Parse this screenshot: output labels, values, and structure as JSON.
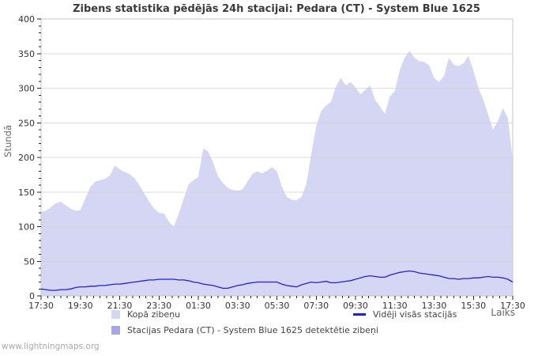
{
  "page": {
    "watermark": "www.lightningmaps.org"
  },
  "chart_data": {
    "type": "area",
    "title": "Zibens statistika pēdējās 24h stacijai: Pedara (CT) - System Blue 1625",
    "ylabel": "Stundā",
    "xlabel": "Laiks",
    "ylim": [
      0,
      400
    ],
    "y_major_step": 50,
    "y_minor_step": 10,
    "x_range_hours": 24,
    "x_tick_labels": [
      "17:30",
      "19:30",
      "21:30",
      "23:30",
      "01:30",
      "03:30",
      "05:30",
      "07:30",
      "09:30",
      "11:30",
      "13:30",
      "15:30",
      "17:30"
    ],
    "x_minor_ticks_per_major": 6,
    "sample_interval_minutes": 15,
    "grid": "horizontal",
    "legend_position": "bottom",
    "colors": {
      "total_area": "#d5d5f4",
      "station_area": "#a7a7e8",
      "average_line": "#2222cc",
      "grid": "#d0d0d0",
      "frame": "#c6c6c6",
      "tick": "#222222"
    },
    "series": [
      {
        "name": "Kopā zibeņu",
        "type": "area",
        "color": "#d5d5f4",
        "values": [
          121,
          123,
          128,
          134,
          136,
          131,
          126,
          123,
          124,
          141,
          157,
          165,
          167,
          169,
          174,
          188,
          183,
          179,
          176,
          170,
          160,
          148,
          136,
          126,
          120,
          119,
          107,
          100,
          118,
          140,
          161,
          167,
          172,
          213,
          209,
          193,
          173,
          163,
          156,
          153,
          152,
          154,
          165,
          176,
          180,
          177,
          181,
          186,
          180,
          158,
          143,
          139,
          138,
          143,
          162,
          205,
          245,
          267,
          275,
          280,
          302,
          315,
          304,
          309,
          301,
          291,
          298,
          304,
          283,
          273,
          263,
          288,
          296,
          326,
          344,
          354,
          344,
          339,
          338,
          333,
          315,
          309,
          317,
          344,
          334,
          332,
          336,
          347,
          325,
          301,
          283,
          262,
          240,
          253,
          271,
          257,
          196
        ]
      },
      {
        "name": "Stacijas Pedara (CT) - System Blue 1625 detektētie zibeņi",
        "type": "area",
        "color": "#a7a7e8",
        "visible_in_plot": false,
        "values": []
      },
      {
        "name": "Vidēji visās stacijās",
        "type": "line",
        "color": "#2222cc",
        "values": [
          10,
          9,
          8,
          8,
          9,
          9,
          10,
          12,
          13,
          13,
          14,
          14,
          15,
          15,
          16,
          17,
          17,
          18,
          19,
          20,
          21,
          22,
          23,
          23,
          24,
          24,
          24,
          24,
          23,
          23,
          22,
          20,
          19,
          17,
          16,
          15,
          13,
          11,
          11,
          13,
          15,
          16,
          18,
          19,
          20,
          20,
          20,
          20,
          20,
          17,
          15,
          14,
          13,
          16,
          18,
          20,
          19,
          20,
          21,
          19,
          19,
          20,
          21,
          22,
          24,
          26,
          28,
          29,
          28,
          27,
          27,
          30,
          32,
          34,
          35,
          36,
          35,
          33,
          32,
          31,
          30,
          29,
          27,
          25,
          25,
          24,
          25,
          25,
          26,
          26,
          27,
          28,
          27,
          27,
          26,
          24,
          20
        ]
      }
    ]
  }
}
